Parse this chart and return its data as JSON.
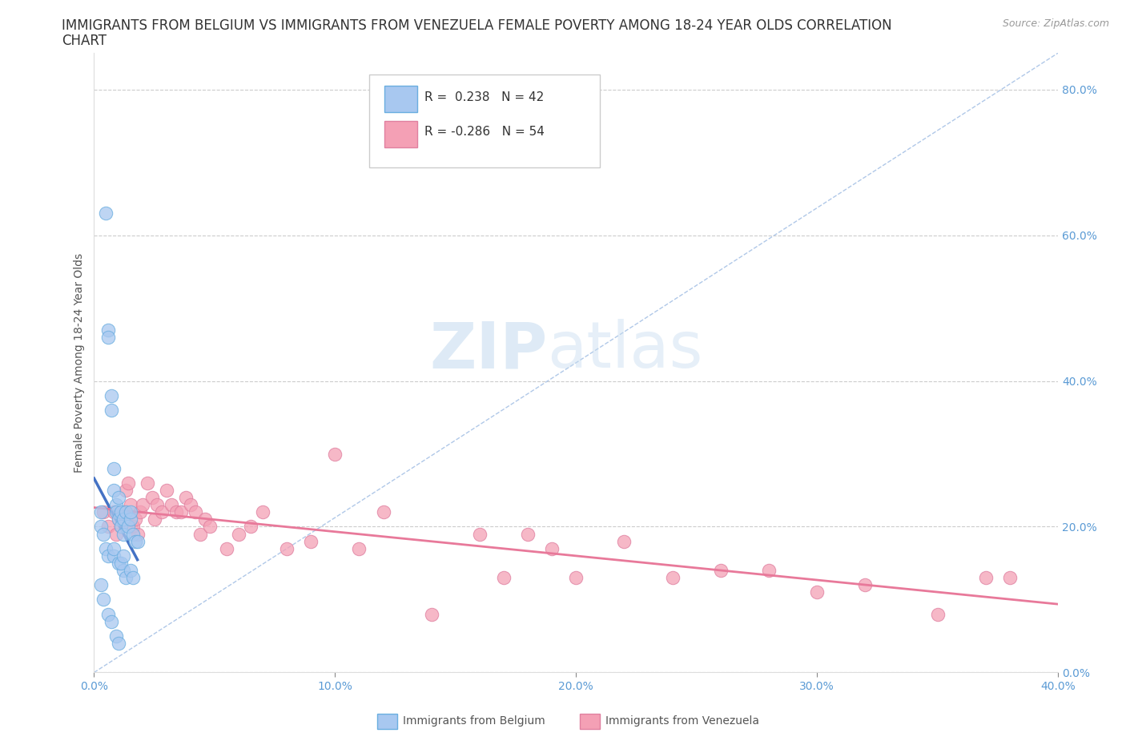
{
  "title_line1": "IMMIGRANTS FROM BELGIUM VS IMMIGRANTS FROM VENEZUELA FEMALE POVERTY AMONG 18-24 YEAR OLDS CORRELATION",
  "title_line2": "CHART",
  "source": "Source: ZipAtlas.com",
  "ylabel": "Female Poverty Among 18-24 Year Olds",
  "xlim": [
    0.0,
    0.4
  ],
  "ylim": [
    0.0,
    0.85
  ],
  "x_tick_vals": [
    0.0,
    0.1,
    0.2,
    0.3,
    0.4
  ],
  "x_tick_labels": [
    "0.0%",
    "10.0%",
    "20.0%",
    "30.0%",
    "40.0%"
  ],
  "y_tick_vals": [
    0.0,
    0.2,
    0.4,
    0.6,
    0.8
  ],
  "y_tick_labels": [
    "0.0%",
    "20.0%",
    "40.0%",
    "60.0%",
    "80.0%"
  ],
  "belgium_color": "#a8c8f0",
  "venezuela_color": "#f4a0b5",
  "belgium_edge": "#6aaee0",
  "venezuela_edge": "#e080a0",
  "belgium_line_color": "#4472c4",
  "venezuela_line_color": "#e8799a",
  "R_belgium": 0.238,
  "N_belgium": 42,
  "R_venezuela": -0.286,
  "N_venezuela": 54,
  "legend_label_belgium": "Immigrants from Belgium",
  "legend_label_venezuela": "Immigrants from Venezuela",
  "watermark_zip": "ZIP",
  "watermark_atlas": "atlas",
  "diag_color": "#b0c8e8",
  "grid_color": "#cccccc",
  "tick_color": "#5b9bd5",
  "background_color": "#ffffff",
  "title_fontsize": 12,
  "axis_label_fontsize": 10,
  "tick_fontsize": 10,
  "legend_fontsize": 11,
  "source_fontsize": 9,
  "scatter_size": 140,
  "scatter_alpha": 0.75
}
